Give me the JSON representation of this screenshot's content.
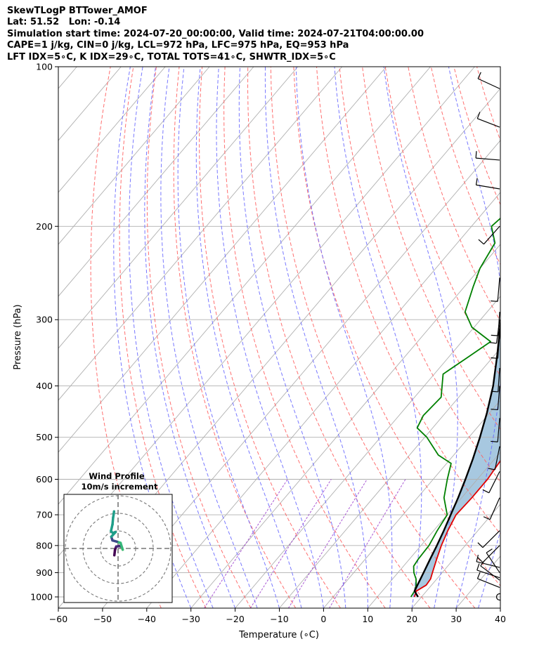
{
  "header": {
    "line1": "SkewTLogP BTTower_AMOF",
    "line2": "Lat: 51.52   Lon: -0.14",
    "line3": "Simulation start time: 2024-07-20_00:00:00, Valid time: 2024-07-21T04:00:00.00",
    "line4": "CAPE=1 j/kg, CIN=0 j/kg, LCL=972 hPa, LFC=975 hPa, EQ=953 hPa",
    "line5": "LFT IDX=5∘C, K IDX=29∘C, TOTAL TOTS=41∘C, SHWTR_IDX=5∘C"
  },
  "chart_data": [
    {
      "type": "line",
      "chart_kind": "skew-T log-P",
      "xlabel": "Temperature (∘C)",
      "ylabel": "Pressure (hPa)",
      "xlim": [
        -60,
        40
      ],
      "ylim": [
        1050,
        100
      ],
      "y_scale": "log",
      "grid": true,
      "x_ticks": [
        -60,
        -50,
        -40,
        -30,
        -20,
        -10,
        0,
        10,
        20,
        30,
        40
      ],
      "y_ticks": [
        100,
        200,
        300,
        400,
        500,
        600,
        700,
        800,
        900,
        1000
      ],
      "colors": {
        "temperature": "#e00000",
        "dewpoint": "#008000",
        "parcel": "#000000",
        "cape_fill": "#a7c8e0",
        "dry_adiabats": "#ff6060",
        "moist_adiabats": "#6a6aff",
        "mixing_ratio": "#9b3dcc",
        "isotherms": "#b0b0b0"
      },
      "series": [
        {
          "key": "temperature",
          "points": [
            [
              1000,
              18.4
            ],
            [
              975,
              17.7
            ],
            [
              950,
              18.8
            ],
            [
              925,
              18.6
            ],
            [
              900,
              17.8
            ],
            [
              850,
              16.2
            ],
            [
              800,
              14.6
            ],
            [
              750,
              13.2
            ],
            [
              700,
              12.0
            ],
            [
              650,
              12.3
            ],
            [
              600,
              12.3
            ],
            [
              550,
              11.6
            ],
            [
              500,
              9.6
            ],
            [
              450,
              7.0
            ],
            [
              420,
              3.6
            ],
            [
              390,
              -0.8
            ],
            [
              350,
              -5.8
            ],
            [
              310,
              -10.8
            ],
            [
              300,
              -12.2
            ],
            [
              270,
              -13.5
            ],
            [
              250,
              -16.0
            ],
            [
              230,
              -19.5
            ],
            [
              210,
              -21.0
            ],
            [
              200,
              -22.0
            ],
            [
              185,
              -22.8
            ],
            [
              160,
              -27.2
            ],
            [
              140,
              -32.0
            ],
            [
              120,
              -38.0
            ],
            [
              100,
              -45.5
            ]
          ]
        },
        {
          "key": "dewpoint",
          "points": [
            [
              1000,
              17.6
            ],
            [
              975,
              17.3
            ],
            [
              950,
              16.5
            ],
            [
              925,
              15.3
            ],
            [
              900,
              13.6
            ],
            [
              875,
              12.3
            ],
            [
              850,
              12.0
            ],
            [
              800,
              11.8
            ],
            [
              750,
              10.8
            ],
            [
              700,
              10.0
            ],
            [
              650,
              6.0
            ],
            [
              600,
              3.2
            ],
            [
              560,
              1.0
            ],
            [
              540,
              -3.5
            ],
            [
              500,
              -9.5
            ],
            [
              480,
              -13.5
            ],
            [
              455,
              -14.5
            ],
            [
              420,
              -14.0
            ],
            [
              380,
              -18.0
            ],
            [
              355,
              -15.8
            ],
            [
              330,
              -13.5
            ],
            [
              310,
              -20.5
            ],
            [
              290,
              -25.0
            ],
            [
              260,
              -28.0
            ],
            [
              240,
              -30.0
            ],
            [
              215,
              -31.5
            ],
            [
              200,
              -35.5
            ],
            [
              180,
              -34.0
            ],
            [
              170,
              -33.5
            ],
            [
              165,
              -36.5
            ],
            [
              150,
              -38.0
            ],
            [
              130,
              -42.0
            ],
            [
              100,
              -50.5
            ]
          ]
        },
        {
          "key": "parcel",
          "points": [
            [
              1000,
              19.2
            ],
            [
              975,
              17.3
            ],
            [
              950,
              16.8
            ],
            [
              900,
              15.8
            ],
            [
              850,
              14.7
            ],
            [
              800,
              13.6
            ],
            [
              750,
              12.3
            ],
            [
              700,
              10.8
            ],
            [
              650,
              9.2
            ],
            [
              600,
              7.3
            ],
            [
              550,
              5.1
            ],
            [
              500,
              2.5
            ],
            [
              450,
              -0.6
            ],
            [
              400,
              -4.4
            ],
            [
              350,
              -9.4
            ],
            [
              300,
              -15.4
            ],
            [
              250,
              -23.2
            ],
            [
              200,
              -33.0
            ],
            [
              150,
              -43.3
            ],
            [
              120,
              -50.7
            ],
            [
              100,
              -56.5
            ]
          ]
        }
      ]
    },
    {
      "type": "scatter",
      "chart_kind": "hodograph",
      "title": "Wind Profile",
      "subtitle": "10m/s increment",
      "ring_step_ms": 10,
      "colormap": "viridis",
      "points_uv": [
        [
          -1.2,
          -2.2
        ],
        [
          -1.0,
          -0.5
        ],
        [
          -0.6,
          0.6
        ],
        [
          0.5,
          0.8
        ],
        [
          1.2,
          0.4
        ],
        [
          1.5,
          -0.4
        ],
        [
          0.8,
          1.8
        ],
        [
          -0.4,
          2.2
        ],
        [
          -1.8,
          2.6
        ],
        [
          -2.2,
          3.8
        ],
        [
          -0.8,
          5.3
        ],
        [
          -1.7,
          5.0
        ],
        [
          -2.3,
          5.6
        ],
        [
          -1.8,
          7.8
        ],
        [
          -1.6,
          10.0
        ],
        [
          -1.4,
          11.2
        ],
        [
          -1.3,
          12.0
        ]
      ]
    }
  ],
  "wind_barbs": [
    {
      "p": 1000,
      "u": 0,
      "v": 0
    },
    {
      "p": 960,
      "u": -5,
      "v": 2
    },
    {
      "p": 930,
      "u": -4,
      "v": 3
    },
    {
      "p": 920,
      "u": -3,
      "v": 1
    },
    {
      "p": 900,
      "u": -2,
      "v": 3
    },
    {
      "p": 880,
      "u": -4,
      "v": 1
    },
    {
      "p": 800,
      "u": -4,
      "v": -4
    },
    {
      "p": 750,
      "u": -4,
      "v": -4
    },
    {
      "p": 650,
      "u": -4,
      "v": -9
    },
    {
      "p": 580,
      "u": -4,
      "v": -8
    },
    {
      "p": 520,
      "u": -2,
      "v": -10
    },
    {
      "p": 460,
      "u": -1,
      "v": -12
    },
    {
      "p": 400,
      "u": -1,
      "v": -13
    },
    {
      "p": 370,
      "u": -1,
      "v": -15
    },
    {
      "p": 320,
      "u": -1,
      "v": -13
    },
    {
      "p": 300,
      "u": -2,
      "v": -15
    },
    {
      "p": 290,
      "u": -1,
      "v": -15
    },
    {
      "p": 250,
      "u": -1,
      "v": -12
    },
    {
      "p": 200,
      "u": -8,
      "v": -9
    },
    {
      "p": 170,
      "u": -12,
      "v": 2
    },
    {
      "p": 150,
      "u": -12,
      "v": 1
    },
    {
      "p": 130,
      "u": -13,
      "v": 5
    },
    {
      "p": 110,
      "u": -13,
      "v": 6
    }
  ]
}
